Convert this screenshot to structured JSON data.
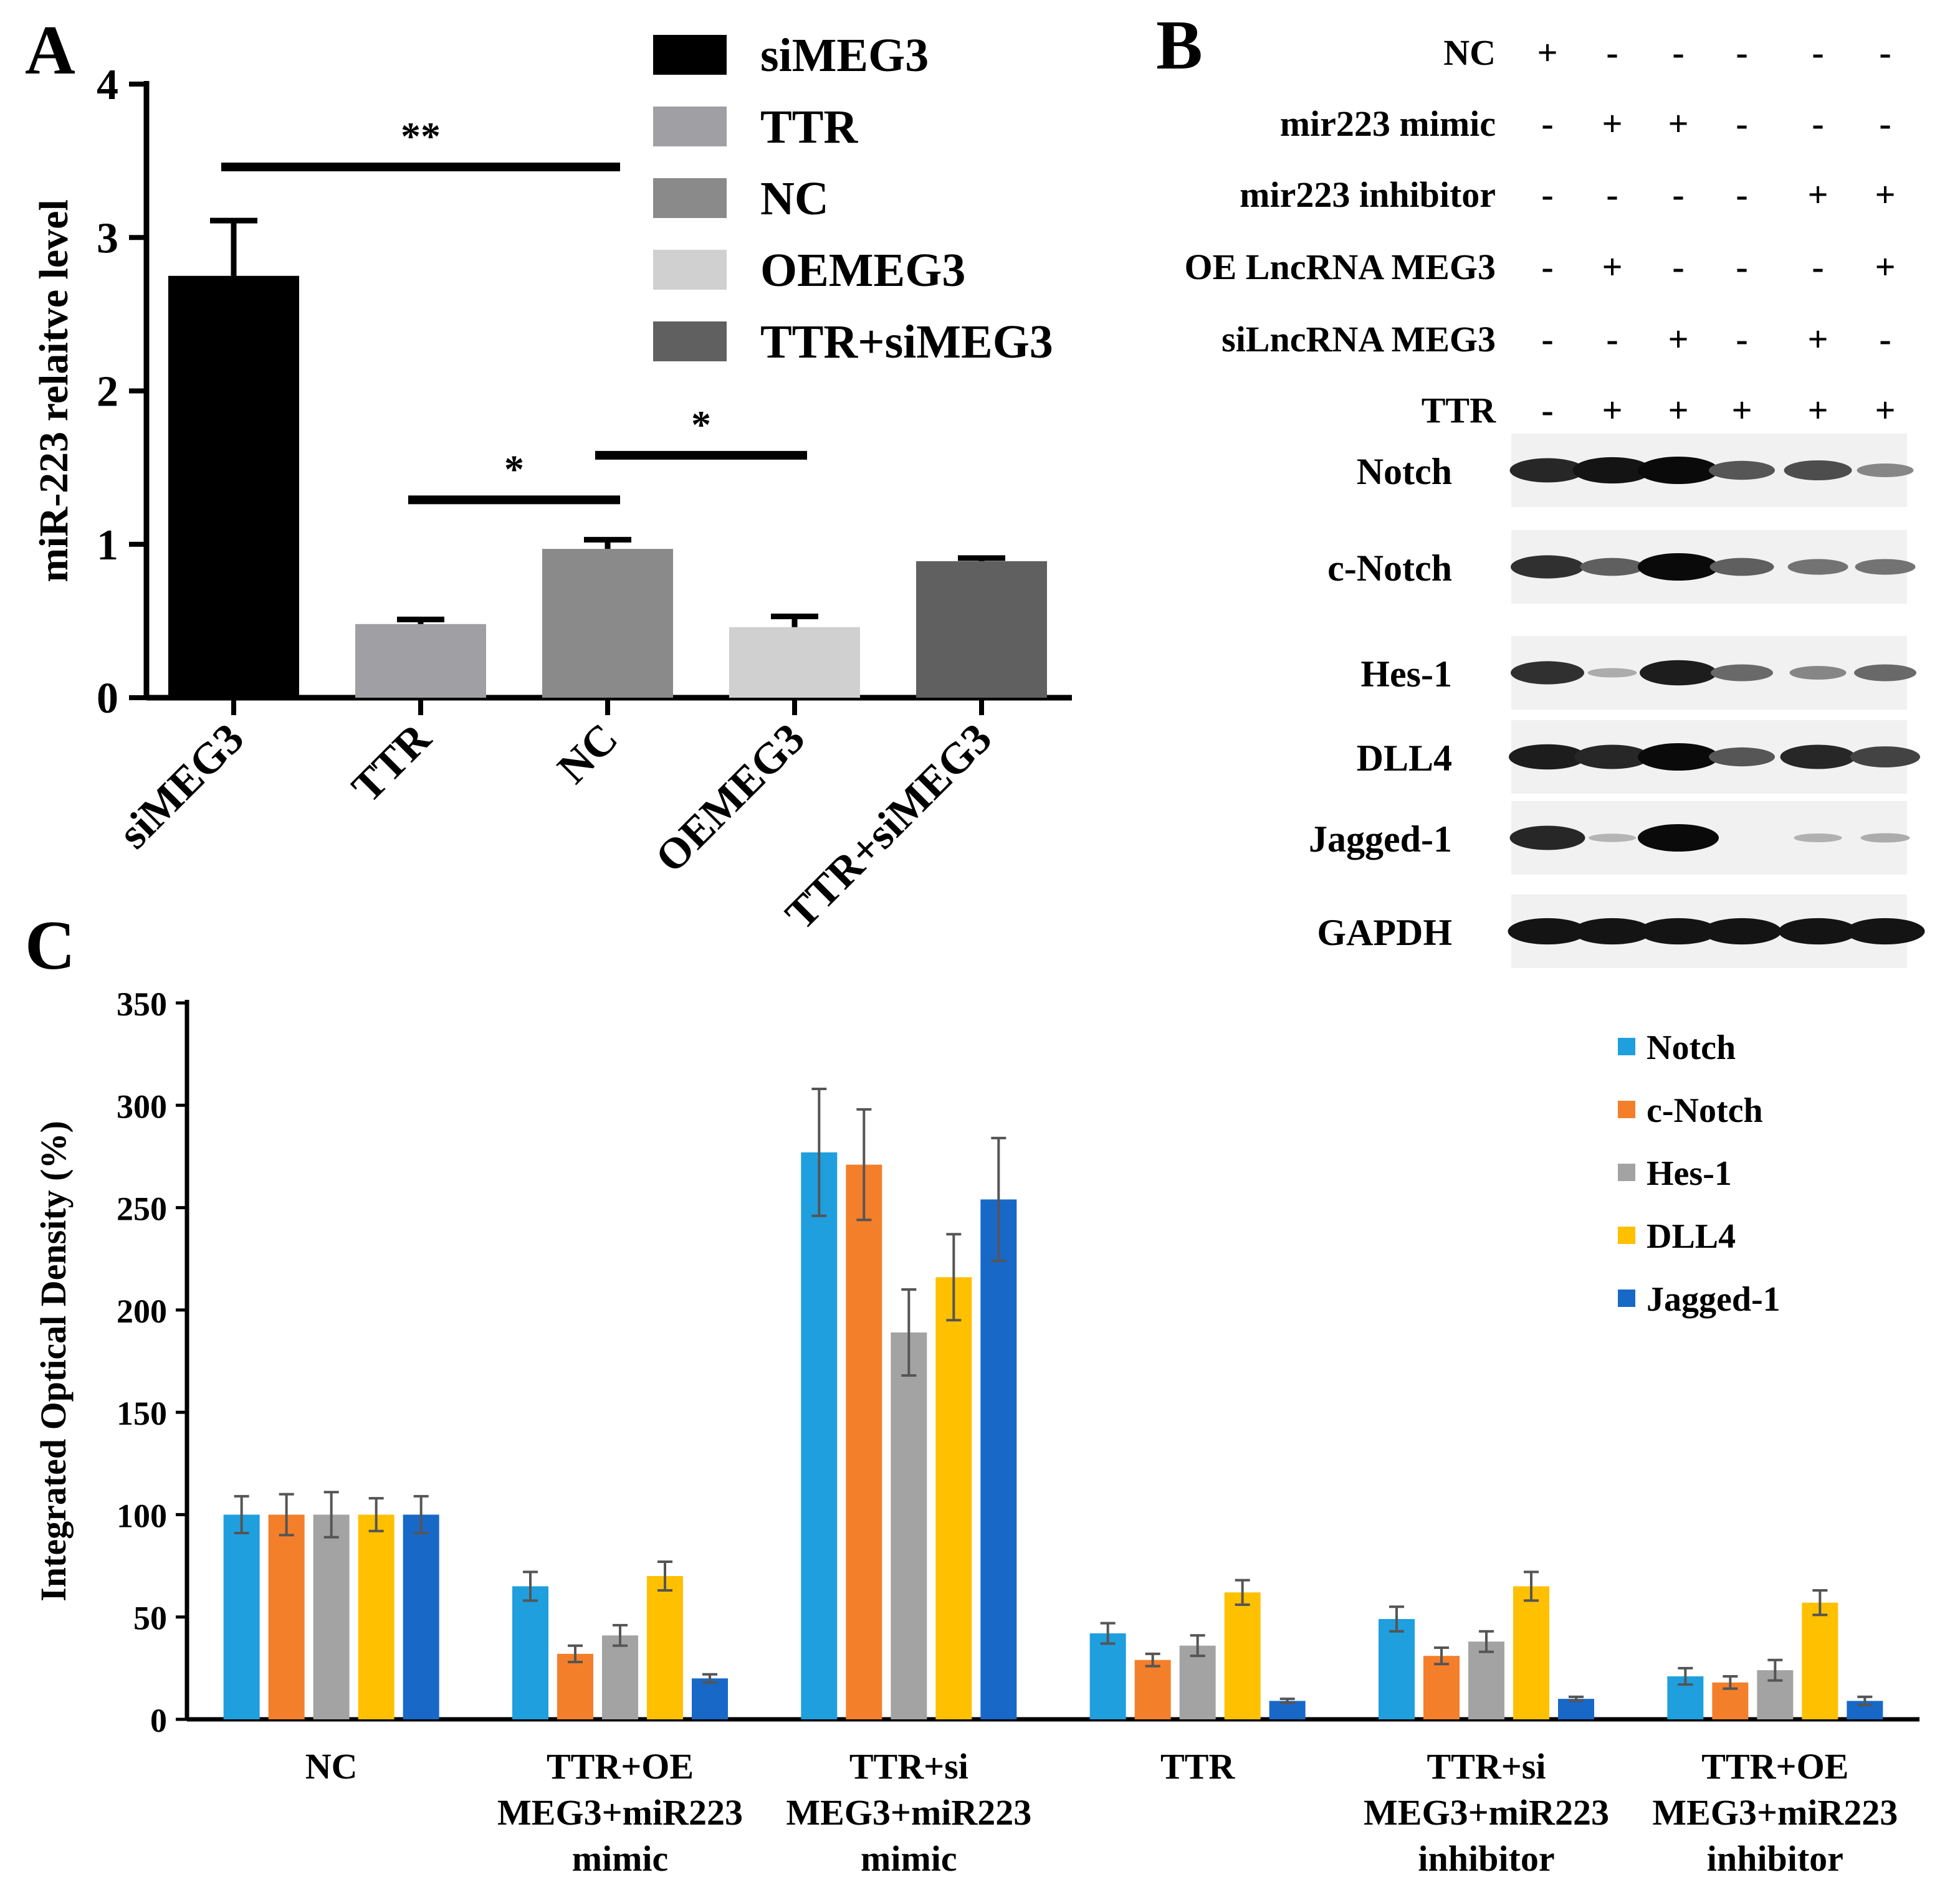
{
  "panels": {
    "a": {
      "letter": "A"
    },
    "b": {
      "letter": "B"
    },
    "c": {
      "letter": "C"
    }
  },
  "chart_data": [
    {
      "panel": "A",
      "type": "bar",
      "categories": [
        "siMEG3",
        "TTR",
        "NC",
        "OEMEG3",
        "TTR+siMEG3"
      ],
      "values": [
        2.75,
        0.48,
        0.97,
        0.46,
        0.89
      ],
      "errors": [
        0.36,
        0.03,
        0.06,
        0.07,
        0.02
      ],
      "colors": [
        "#000000",
        "#a0a0a4",
        "#8a8a8a",
        "#d0d0d0",
        "#606060"
      ],
      "ylabel": "miR-223 relaitve level",
      "ylim": [
        0,
        4
      ],
      "yticks": [
        0,
        1,
        2,
        3,
        4
      ],
      "legend": [
        "siMEG3",
        "TTR",
        "NC",
        "OEMEG3",
        "TTR+siMEG3"
      ],
      "legend_position": "top-right",
      "significance": [
        {
          "from": "siMEG3",
          "to": "NC",
          "label": "**"
        },
        {
          "from": "TTR",
          "to": "NC",
          "label": "*"
        },
        {
          "from": "NC",
          "to": "OEMEG3",
          "label": "*"
        }
      ]
    },
    {
      "panel": "B",
      "type": "table",
      "conditions": [
        {
          "label": "NC",
          "values": [
            "+",
            "-",
            "-",
            "-",
            "-",
            "-"
          ]
        },
        {
          "label": "mir223 mimic",
          "values": [
            "-",
            "+",
            "+",
            "-",
            "-",
            "-"
          ]
        },
        {
          "label": "mir223 inhibitor",
          "values": [
            "-",
            "-",
            "-",
            "-",
            "+",
            "+"
          ]
        },
        {
          "label": "OE LncRNA MEG3",
          "values": [
            "-",
            "+",
            "-",
            "-",
            "-",
            "+"
          ]
        },
        {
          "label": "siLncRNA MEG3",
          "values": [
            "-",
            "-",
            "+",
            "-",
            "+",
            "-"
          ]
        },
        {
          "label": "TTR",
          "values": [
            "-",
            "+",
            "+",
            "+",
            "+",
            "+"
          ]
        }
      ],
      "blots": [
        {
          "label": "Notch",
          "intensity": [
            0.85,
            0.95,
            1.0,
            0.6,
            0.65,
            0.35
          ]
        },
        {
          "label": "c-Notch",
          "intensity": [
            0.8,
            0.55,
            1.0,
            0.55,
            0.45,
            0.45
          ]
        },
        {
          "label": "Hes-1",
          "intensity": [
            0.8,
            0.15,
            0.9,
            0.5,
            0.35,
            0.5
          ]
        },
        {
          "label": "DLL4",
          "intensity": [
            0.9,
            0.85,
            1.0,
            0.6,
            0.85,
            0.7
          ]
        },
        {
          "label": "Jagged-1",
          "intensity": [
            0.85,
            0.1,
            1.0,
            0.0,
            0.12,
            0.15
          ]
        },
        {
          "label": "GAPDH",
          "intensity": [
            0.95,
            0.95,
            0.95,
            0.95,
            0.95,
            0.95
          ]
        }
      ]
    },
    {
      "panel": "C",
      "type": "bar",
      "categories": [
        [
          "NC"
        ],
        [
          "TTR+OE",
          "MEG3+miR223",
          "mimic"
        ],
        [
          "TTR+si",
          "MEG3+miR223",
          "mimic"
        ],
        [
          "TTR"
        ],
        [
          "TTR+si",
          "MEG3+miR223",
          "inhibitor"
        ],
        [
          "TTR+OE",
          "MEG3+miR223",
          "inhibitor"
        ]
      ],
      "ylabel": "Integrated Optical Density (%)",
      "ylim": [
        0,
        350
      ],
      "yticks": [
        0,
        50,
        100,
        150,
        200,
        250,
        300,
        350
      ],
      "legend_position": "top-right",
      "series": [
        {
          "name": "Notch",
          "color": "#1f9fde",
          "values": [
            100,
            65,
            277,
            42,
            49,
            21
          ],
          "errors": [
            9,
            7,
            31,
            5,
            6,
            4
          ]
        },
        {
          "name": "c-Notch",
          "color": "#f47f2a",
          "values": [
            100,
            32,
            271,
            29,
            31,
            18
          ],
          "errors": [
            10,
            4,
            27,
            3,
            4,
            3
          ]
        },
        {
          "name": "Hes-1",
          "color": "#a3a3a3",
          "values": [
            100,
            41,
            189,
            36,
            38,
            24
          ],
          "errors": [
            11,
            5,
            21,
            5,
            5,
            5
          ]
        },
        {
          "name": "DLL4",
          "color": "#ffc000",
          "values": [
            100,
            70,
            216,
            62,
            65,
            57
          ],
          "errors": [
            8,
            7,
            21,
            6,
            7,
            6
          ]
        },
        {
          "name": "Jagged-1",
          "color": "#1868c8",
          "values": [
            100,
            20,
            254,
            9,
            10,
            9
          ],
          "errors": [
            9,
            2,
            30,
            1,
            1,
            2
          ]
        }
      ]
    }
  ]
}
